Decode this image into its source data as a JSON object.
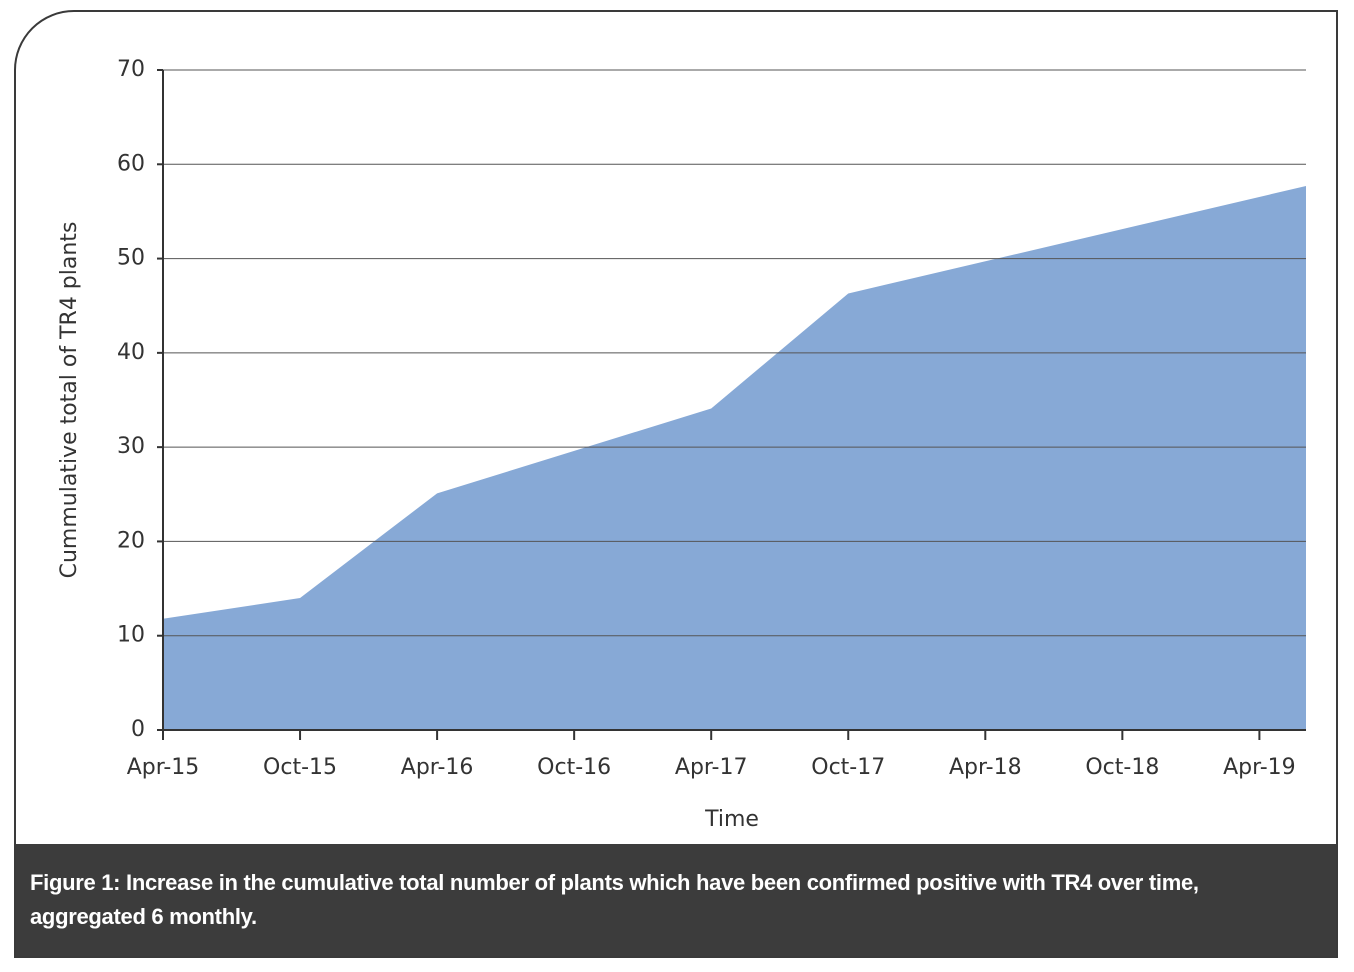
{
  "chart_data": {
    "type": "area",
    "ylabel": "Cummulative total of TR4 plants",
    "xlabel": "Time",
    "caption": "Figure 1: Increase in the cumulative total number of plants which have been confirmed positive with TR4 over time, aggregated 6 monthly.",
    "x": [
      2015.25,
      2015.75,
      2016.25,
      2017.25,
      2017.75,
      2019.42
    ],
    "values": [
      11.8,
      14,
      25.1,
      34.1,
      46.3,
      57.7
    ],
    "color": "#87a9d6",
    "xlim": [
      2015.25,
      2019.42
    ],
    "xticks": [
      {
        "value": 2015.25,
        "label": "Apr-15"
      },
      {
        "value": 2015.75,
        "label": "Oct-15"
      },
      {
        "value": 2016.25,
        "label": "Apr-16"
      },
      {
        "value": 2016.75,
        "label": "Oct-16"
      },
      {
        "value": 2017.25,
        "label": "Apr-17"
      },
      {
        "value": 2017.75,
        "label": "Oct-17"
      },
      {
        "value": 2018.25,
        "label": "Apr-18"
      },
      {
        "value": 2018.75,
        "label": "Oct-18"
      },
      {
        "value": 2019.25,
        "label": "Apr-19"
      }
    ],
    "ylim": [
      0,
      70
    ],
    "yticks": [
      0,
      10,
      20,
      30,
      40,
      50,
      60,
      70
    ],
    "grid": true
  }
}
